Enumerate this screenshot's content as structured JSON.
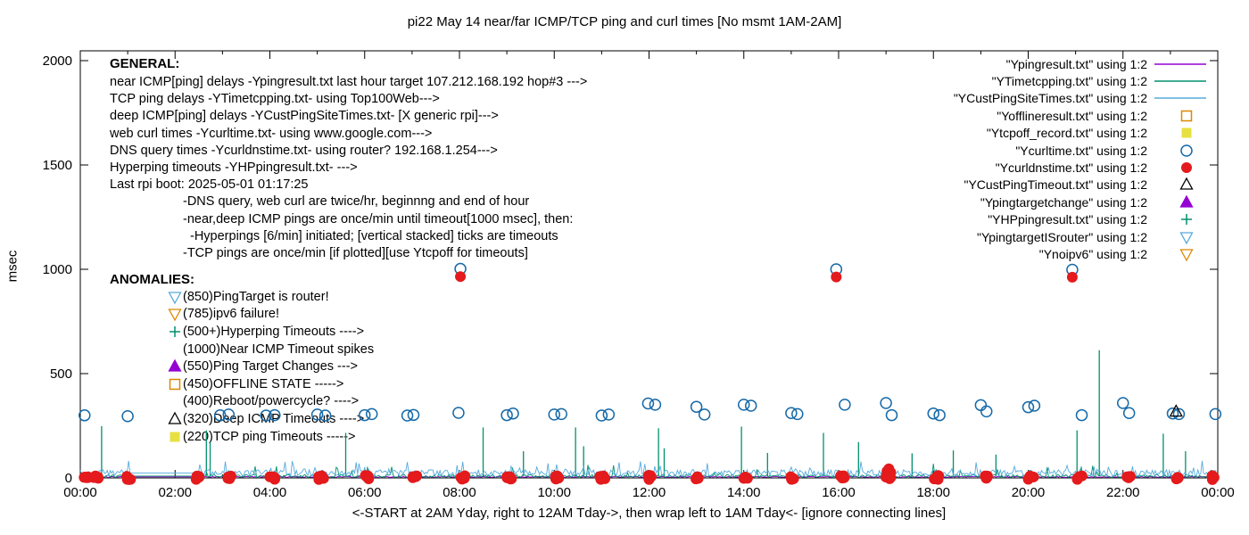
{
  "title": "pi22 May 14  near/far ICMP/TCP ping and curl times [No msmt 1AM-2AM]",
  "axes": {
    "ylabel": "msec",
    "xlabel": "<-START at 2AM Yday, right to 12AM Tday->, then wrap left to 1AM Tday<- [ignore connecting lines]",
    "x_tick_labels": [
      "00:00",
      "02:00",
      "04:00",
      "06:00",
      "08:00",
      "10:00",
      "12:00",
      "14:00",
      "16:00",
      "18:00",
      "20:00",
      "22:00",
      "00:00"
    ],
    "y_tick_labels": [
      "0",
      "500",
      "1000",
      "1500",
      "2000"
    ]
  },
  "general": {
    "heading": "GENERAL:",
    "lines": [
      {
        "t": "near ICMP[ping] delays -Ypingresult.txt last hour target 107.212.168.192 hop#3 --->",
        "x": 0
      },
      {
        "t": "TCP ping delays -YTimetcpping.txt- using Top100Web--->",
        "x": 0
      },
      {
        "t": "deep ICMP[ping] delays -YCustPingSiteTimes.txt- [X generic rpi]--->",
        "x": 0
      },
      {
        "t": "web curl times -Ycurltime.txt- using www.google.com--->",
        "x": 0
      },
      {
        "t": "DNS query times -Ycurldnstime.txt- using router? 192.168.1.254--->",
        "x": 0
      },
      {
        "t": "Hyperping timeouts -YHPpingresult.txt- --->",
        "x": 0
      },
      {
        "t": "Last rpi boot: 2025-05-01 01:17:25",
        "x": 0
      },
      {
        "t": "-DNS query, web curl are twice/hr, beginnng and end of hour",
        "x": 82
      },
      {
        "t": "-near,deep ICMP pings are once/min until timeout[1000 msec], then:",
        "x": 82
      },
      {
        "t": "-Hyperpings [6/min] initiated; [vertical stacked] ticks are timeouts",
        "x": 90
      },
      {
        "t": "-TCP pings are once/min [if plotted][use Ytcpoff for timeouts]",
        "x": 82
      }
    ]
  },
  "anomalies": {
    "heading": "ANOMALIES:",
    "items": [
      {
        "marker": "triangle-down-open",
        "color": "#56aadc",
        "text": "(850)PingTarget is router!"
      },
      {
        "marker": "triangle-down-open",
        "color": "#dd8800",
        "text": "(785)ipv6 failure!"
      },
      {
        "marker": "plus",
        "color": "#00916d",
        "text": "(500+)Hyperping Timeouts ---->"
      },
      {
        "marker": null,
        "color": null,
        "text": "(1000)Near ICMP Timeout spikes"
      },
      {
        "marker": "triangle-up-filled",
        "color": "#9400d3",
        "text": "(550)Ping Target Changes --->"
      },
      {
        "marker": "square-open",
        "color": "#dd8800",
        "text": "(450)OFFLINE STATE ----->"
      },
      {
        "marker": null,
        "color": null,
        "text": "(400)Reboot/powercycle? ---->"
      },
      {
        "marker": "triangle-up-open",
        "color": "#000000",
        "text": "(320)Deep ICMP Timeouts ---->"
      },
      {
        "marker": "square-filled",
        "color": "#e8e040",
        "text": "(220)TCP ping Timeouts ----->"
      }
    ]
  },
  "chart_data": {
    "type": "line",
    "title": "pi22 May 14  near/far ICMP/TCP ping and curl times [No msmt 1AM-2AM]",
    "xlabel": "<-START at 2AM Yday, right to 12AM Tday->, then wrap left to 1AM Tday<- [ignore connecting lines]",
    "ylabel": "msec",
    "xlim": [
      0,
      24
    ],
    "ylim": [
      0,
      2047
    ],
    "x_major_step_h": 2,
    "x_minor_step_h": 1,
    "y_major_step": 500,
    "legend_position": "top-right",
    "grid": false,
    "no_measurement_gap_h": {
      "start": 1.05,
      "end": 2.45
    },
    "series": [
      {
        "name": "Ypingresult.txt",
        "legend_label": "\"Ypingresult.txt\" using 1:2",
        "color": "#9400d3",
        "sample": "line",
        "noise": {
          "base": 5,
          "amp": 2.5,
          "spike_prob": 0.01,
          "spike_amp": 8,
          "step": 0.03,
          "seed": 101
        }
      },
      {
        "name": "YTimetcpping.txt",
        "legend_label": "\"YTimetcpping.txt\" using 1:2",
        "color": "#00916d",
        "sample": "line",
        "noise": {
          "base": 9,
          "amp": 7,
          "spike_prob": 0.05,
          "spike_amp": 55,
          "step": 0.03,
          "seed": 202
        },
        "spikes": [
          [
            0.45,
            248
          ],
          [
            2.66,
            228
          ],
          [
            2.74,
            172
          ],
          [
            5.6,
            216
          ],
          [
            8.5,
            242
          ],
          [
            9.35,
            128
          ],
          [
            10.45,
            242
          ],
          [
            10.62,
            152
          ],
          [
            12.2,
            238
          ],
          [
            12.32,
            142
          ],
          [
            13.95,
            246
          ],
          [
            14.5,
            120
          ],
          [
            15.68,
            216
          ],
          [
            16.42,
            172
          ],
          [
            17.55,
            118
          ],
          [
            18.42,
            132
          ],
          [
            19.32,
            112
          ],
          [
            21.03,
            228
          ],
          [
            21.5,
            612
          ],
          [
            22.85,
            212
          ],
          [
            23.32,
            128
          ]
        ]
      },
      {
        "name": "YCustPingSiteTimes.txt",
        "legend_label": "\"YCustPingSiteTimes.txt\" using 1:2",
        "color": "#56aadc",
        "sample": "line",
        "noise": {
          "base": 24,
          "amp": 15,
          "spike_prob": 0.09,
          "spike_amp": 48,
          "step": 0.03,
          "seed": 303
        }
      },
      {
        "name": "Yofflineresult.txt",
        "legend_label": "\"Yofflineresult.txt\" using 1:2",
        "color": "#dd8800",
        "sample": "square-open"
      },
      {
        "name": "Ytcpoff_record.txt",
        "legend_label": "\"Ytcpoff_record.txt\" using 1:2",
        "color": "#e8e040",
        "sample": "square-filled"
      },
      {
        "name": "Ycurltime.txt",
        "legend_label": "\"Ycurltime.txt\" using 1:2",
        "color": "#1569a8",
        "sample": "circle-open",
        "points": [
          [
            0.09,
            300
          ],
          [
            1.0,
            296
          ],
          [
            2.95,
            300
          ],
          [
            3.13,
            304
          ],
          [
            3.92,
            299
          ],
          [
            4.1,
            301
          ],
          [
            5.0,
            304
          ],
          [
            5.17,
            299
          ],
          [
            6.0,
            301
          ],
          [
            6.15,
            306
          ],
          [
            6.9,
            299
          ],
          [
            7.03,
            302
          ],
          [
            7.98,
            312
          ],
          [
            8.02,
            1002
          ],
          [
            9.0,
            301
          ],
          [
            9.13,
            309
          ],
          [
            10.0,
            304
          ],
          [
            10.15,
            306
          ],
          [
            11.0,
            299
          ],
          [
            11.15,
            304
          ],
          [
            11.98,
            357
          ],
          [
            12.13,
            351
          ],
          [
            13.0,
            341
          ],
          [
            13.17,
            304
          ],
          [
            14.0,
            351
          ],
          [
            14.15,
            346
          ],
          [
            15.0,
            311
          ],
          [
            15.13,
            306
          ],
          [
            15.95,
            1000
          ],
          [
            16.13,
            351
          ],
          [
            17.0,
            359
          ],
          [
            17.12,
            301
          ],
          [
            18.0,
            309
          ],
          [
            18.13,
            301
          ],
          [
            19.0,
            349
          ],
          [
            19.12,
            319
          ],
          [
            20.0,
            339
          ],
          [
            20.13,
            346
          ],
          [
            20.93,
            998
          ],
          [
            21.13,
            301
          ],
          [
            22.0,
            359
          ],
          [
            22.13,
            311
          ],
          [
            23.05,
            309
          ],
          [
            23.18,
            306
          ],
          [
            23.95,
            306
          ]
        ]
      },
      {
        "name": "Ycurldnstime.txt",
        "legend_label": "\"Ycurldnstime.txt\" using 1:2",
        "color": "#e41a1c",
        "sample": "circle-filled",
        "points": [
          [
            8.02,
            965
          ],
          [
            15.95,
            963
          ],
          [
            20.93,
            962
          ],
          [
            17.02,
            32
          ],
          [
            17.06,
            44
          ],
          [
            17.1,
            26
          ]
        ],
        "clusters": {
          "centers": [
            0.12,
            0.35,
            1.02,
            2.5,
            3.15,
            4.05,
            5.08,
            6.06,
            7.04,
            8.08,
            9.04,
            10.05,
            11.02,
            12.02,
            13.03,
            14.03,
            15.03,
            16.08,
            17.04,
            18.07,
            19.1,
            20.06,
            21.08,
            22.12,
            23.15,
            23.93
          ],
          "count": 5,
          "spread": 0.06,
          "ymin": -8,
          "ymax": 12,
          "seed": 42
        }
      },
      {
        "name": "YCustPingTimeout.txt",
        "legend_label": "\"YCustPingTimeout.txt\" using 1:2",
        "color": "#000000",
        "sample": "triangle-up-open",
        "points": [
          [
            23.12,
            318
          ]
        ]
      },
      {
        "name": "Ypingtargetchange",
        "legend_label": "\"Ypingtargetchange\" using 1:2",
        "color": "#9400d3",
        "sample": "triangle-up-filled"
      },
      {
        "name": "YHPpingresult.txt",
        "legend_label": "\"YHPpingresult.txt\" using 1:2",
        "color": "#00916d",
        "sample": "plus"
      },
      {
        "name": "YpingtargetISrouter",
        "legend_label": "\"YpingtargetISrouter\" using 1:2",
        "color": "#56aadc",
        "sample": "triangle-down-open"
      },
      {
        "name": "Ynoipv6",
        "legend_label": "\"Ynoipv6\" using 1:2",
        "color": "#dd8800",
        "sample": "triangle-down-open"
      }
    ]
  }
}
